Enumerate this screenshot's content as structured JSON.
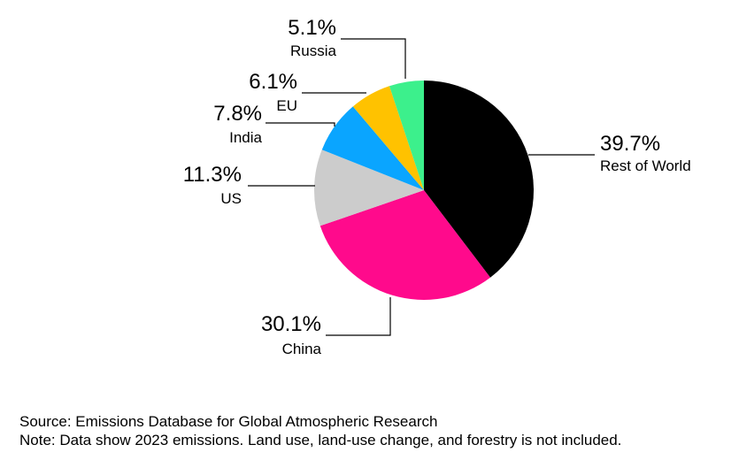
{
  "chart_data": {
    "type": "pie",
    "slices": [
      {
        "label": "Rest of World",
        "value": 39.7,
        "value_label": "39.7%",
        "color": "#000000"
      },
      {
        "label": "China",
        "value": 30.1,
        "value_label": "30.1%",
        "color": "#ff0a8c"
      },
      {
        "label": "US",
        "value": 11.3,
        "value_label": "11.3%",
        "color": "#cccccc"
      },
      {
        "label": "India",
        "value": 7.8,
        "value_label": "7.8%",
        "color": "#0aa5ff"
      },
      {
        "label": "EU",
        "value": 6.1,
        "value_label": "6.1%",
        "color": "#ffc200"
      },
      {
        "label": "Russia",
        "value": 5.1,
        "value_label": "5.1%",
        "color": "#3cf08c"
      }
    ],
    "start": "12 o'clock, clockwise",
    "legend": "none (direct labels)"
  },
  "footer": {
    "source": "Source: Emissions Database for Global Atmospheric Research",
    "note": "Note: Data show 2023 emissions. Land use, land-use change, and forestry is not included."
  }
}
